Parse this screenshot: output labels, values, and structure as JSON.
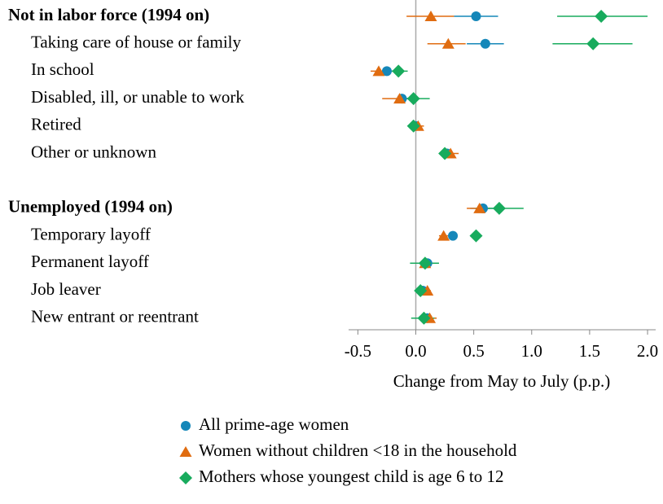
{
  "chart_data": {
    "type": "dot-errorbar",
    "xlabel": "Change from May to July (p.p.)",
    "categories": [
      "Not in labor force (1994 on)",
      "Taking care of house or family",
      "In school",
      "Disabled, ill, or unable to work",
      "Retired",
      "Other or unknown",
      null,
      "Unemployed (1994 on)",
      "Temporary layoff",
      "Permanent layoff",
      "Job leaver",
      "New entrant or reentrant"
    ],
    "header": [
      true,
      false,
      false,
      false,
      false,
      false,
      false,
      true,
      false,
      false,
      false,
      false
    ],
    "series": [
      {
        "name": "All prime-age women",
        "color": "#1587b9",
        "marker": "circle",
        "values": [
          0.52,
          0.6,
          -0.25,
          -0.12,
          0.0,
          0.27,
          null,
          0.58,
          0.32,
          0.1,
          0.06,
          0.1
        ],
        "lower": [
          0.33,
          0.44,
          -0.3,
          -0.17,
          -0.03,
          0.24,
          null,
          0.47,
          0.29,
          0.06,
          0.03,
          0.06
        ],
        "upper": [
          0.71,
          0.76,
          -0.2,
          -0.07,
          0.03,
          0.31,
          null,
          0.68,
          0.35,
          0.13,
          0.09,
          0.13
        ]
      },
      {
        "name": "Women without children <18 in the household",
        "color": "#e06c10",
        "marker": "triangle",
        "values": [
          0.13,
          0.28,
          -0.32,
          -0.14,
          0.02,
          0.3,
          null,
          0.55,
          0.24,
          0.08,
          0.1,
          0.12
        ],
        "lower": [
          -0.08,
          0.1,
          -0.39,
          -0.29,
          -0.02,
          0.22,
          null,
          0.44,
          0.2,
          0.02,
          0.06,
          0.06
        ],
        "upper": [
          0.33,
          0.43,
          -0.25,
          0.01,
          0.07,
          0.37,
          null,
          0.64,
          0.28,
          0.15,
          0.13,
          0.18
        ]
      },
      {
        "name": "Mothers whose youngest child is age 6 to 12",
        "color": "#18ab5d",
        "marker": "diamond",
        "values": [
          1.6,
          1.53,
          -0.15,
          -0.02,
          -0.02,
          0.25,
          null,
          0.72,
          0.52,
          0.08,
          0.04,
          0.07
        ],
        "lower": [
          1.22,
          1.18,
          -0.22,
          -0.12,
          -0.06,
          0.2,
          null,
          0.52,
          0.49,
          -0.05,
          0.0,
          -0.04
        ],
        "upper": [
          2.0,
          1.87,
          -0.07,
          0.12,
          0.02,
          0.3,
          null,
          0.93,
          0.55,
          0.2,
          0.08,
          0.16
        ]
      }
    ],
    "xlim": [
      -0.58,
      2.07
    ],
    "xticks": [
      -0.5,
      {
        "value": 0,
        "label": "0.0"
      },
      0.5,
      {
        "value": 1,
        "label": "1.0"
      },
      1.5,
      {
        "value": 2,
        "label": "2.0"
      }
    ],
    "zero_line": true
  }
}
